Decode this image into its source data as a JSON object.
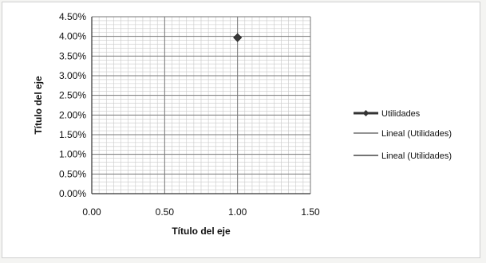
{
  "chart_data": {
    "type": "scatter",
    "title": "",
    "xlabel": "Título del eje",
    "ylabel": "Título del eje",
    "xlim": [
      0,
      1.5
    ],
    "ylim": [
      0,
      0.045
    ],
    "x_ticks": [
      0,
      0.5,
      1.0,
      1.5
    ],
    "x_tick_labels": [
      "0.00",
      "0.50",
      "1.00",
      "1.50"
    ],
    "y_ticks": [
      0,
      0.005,
      0.01,
      0.015,
      0.02,
      0.025,
      0.03,
      0.035,
      0.04,
      0.045
    ],
    "y_tick_labels": [
      "0.00%",
      "0.50%",
      "1.00%",
      "1.50%",
      "2.00%",
      "2.50%",
      "3.00%",
      "3.50%",
      "4.00%",
      "4.50%"
    ],
    "grid": true,
    "legend_position": "right",
    "series": [
      {
        "name": "Utilidades",
        "x": [
          1.0
        ],
        "y": [
          0.0397
        ],
        "color": "#3a3a3a",
        "marker": "diamond"
      }
    ],
    "legend": [
      {
        "label": "Utilidades",
        "style": "line-marker",
        "color": "#333333"
      },
      {
        "label": "Lineal (Utilidades)",
        "style": "line",
        "color": "#555555"
      },
      {
        "label": "Lineal (Utilidades)",
        "style": "line",
        "color": "#222222"
      }
    ]
  }
}
